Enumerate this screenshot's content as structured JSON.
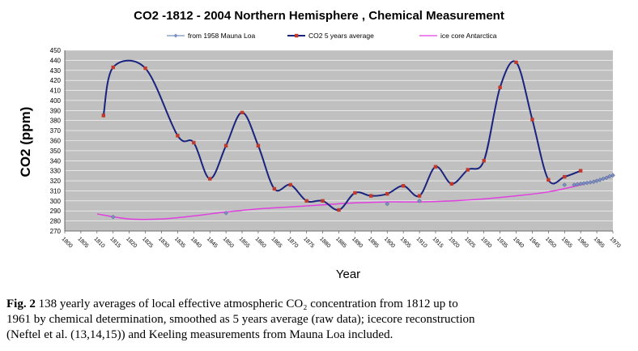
{
  "chart_data": {
    "type": "line",
    "title": "CO2 -1812 - 2004 Northern Hemisphere , Chemical Measurement",
    "xlabel": "Year",
    "ylabel": "CO2 (ppm)",
    "xlim": [
      1800,
      1970
    ],
    "ylim": [
      270,
      450
    ],
    "x_ticks": [
      "1800",
      "1805",
      "1810",
      "1815",
      "1820",
      "1825",
      "1830",
      "1835",
      "1840",
      "1845",
      "1850",
      "1855",
      "1860",
      "1865",
      "1870",
      "1875",
      "1880",
      "1885",
      "1890",
      "1895",
      "1900",
      "1905",
      "1910",
      "1915",
      "1920",
      "1925",
      "1930",
      "1935",
      "1940",
      "1945",
      "1950",
      "1955",
      "1960",
      "1965",
      "1970"
    ],
    "y_ticks": [
      270,
      280,
      290,
      300,
      310,
      320,
      330,
      340,
      350,
      360,
      370,
      380,
      390,
      400,
      410,
      420,
      430,
      440,
      450
    ],
    "grid": "horizontal",
    "legend_position": "top",
    "series": [
      {
        "name": "from 1958 Mauna Loa",
        "color": "#7b8fc0",
        "marker": "diamond",
        "points": [
          [
            1815,
            284
          ],
          [
            1850,
            288
          ],
          [
            1900,
            297
          ],
          [
            1910,
            300
          ],
          [
            1955,
            316
          ],
          [
            1958,
            316
          ],
          [
            1959,
            316.5
          ],
          [
            1960,
            317
          ],
          [
            1961,
            317.5
          ],
          [
            1962,
            318
          ],
          [
            1963,
            318.5
          ],
          [
            1964,
            319
          ],
          [
            1965,
            320
          ],
          [
            1966,
            321
          ],
          [
            1967,
            322
          ],
          [
            1968,
            323
          ],
          [
            1969,
            324.5
          ],
          [
            1970,
            325.5
          ]
        ]
      },
      {
        "name": "CO2  5 years average",
        "color": "#1a237e",
        "marker": "square",
        "marker_color": "#c0392b",
        "points": [
          [
            1812,
            385
          ],
          [
            1815,
            433
          ],
          [
            1825,
            432
          ],
          [
            1835,
            365
          ],
          [
            1840,
            358
          ],
          [
            1845,
            322
          ],
          [
            1850,
            355
          ],
          [
            1855,
            388
          ],
          [
            1860,
            355
          ],
          [
            1865,
            312
          ],
          [
            1870,
            316
          ],
          [
            1875,
            300
          ],
          [
            1880,
            300
          ],
          [
            1885,
            291
          ],
          [
            1890,
            308
          ],
          [
            1895,
            305
          ],
          [
            1900,
            307
          ],
          [
            1905,
            315
          ],
          [
            1910,
            305
          ],
          [
            1915,
            334
          ],
          [
            1920,
            317
          ],
          [
            1925,
            331
          ],
          [
            1930,
            340
          ],
          [
            1935,
            413
          ],
          [
            1940,
            438
          ],
          [
            1945,
            381
          ],
          [
            1950,
            321
          ],
          [
            1955,
            324
          ],
          [
            1960,
            330
          ]
        ]
      },
      {
        "name": "ice core Antarctica",
        "color": "#e040e0",
        "marker": "none",
        "points": [
          [
            1810,
            287
          ],
          [
            1820,
            282
          ],
          [
            1830,
            282
          ],
          [
            1840,
            285
          ],
          [
            1850,
            289
          ],
          [
            1860,
            292
          ],
          [
            1870,
            294
          ],
          [
            1880,
            296
          ],
          [
            1890,
            298
          ],
          [
            1900,
            299
          ],
          [
            1910,
            299
          ],
          [
            1920,
            300
          ],
          [
            1930,
            302
          ],
          [
            1940,
            305
          ],
          [
            1950,
            309
          ],
          [
            1960,
            316
          ],
          [
            1970,
            325
          ]
        ]
      }
    ]
  },
  "caption": {
    "fig_label": "Fig. 2",
    "lines": [
      " 138 yearly averages of local effective atmospheric CO₂ concentration from 1812 up to",
      "1961 by chemical  determination, smoothed as 5 years average (raw data); icecore reconstruction",
      "(Neftel et al. (13,14,15))  and Keeling measurements from Mauna Loa included."
    ]
  }
}
